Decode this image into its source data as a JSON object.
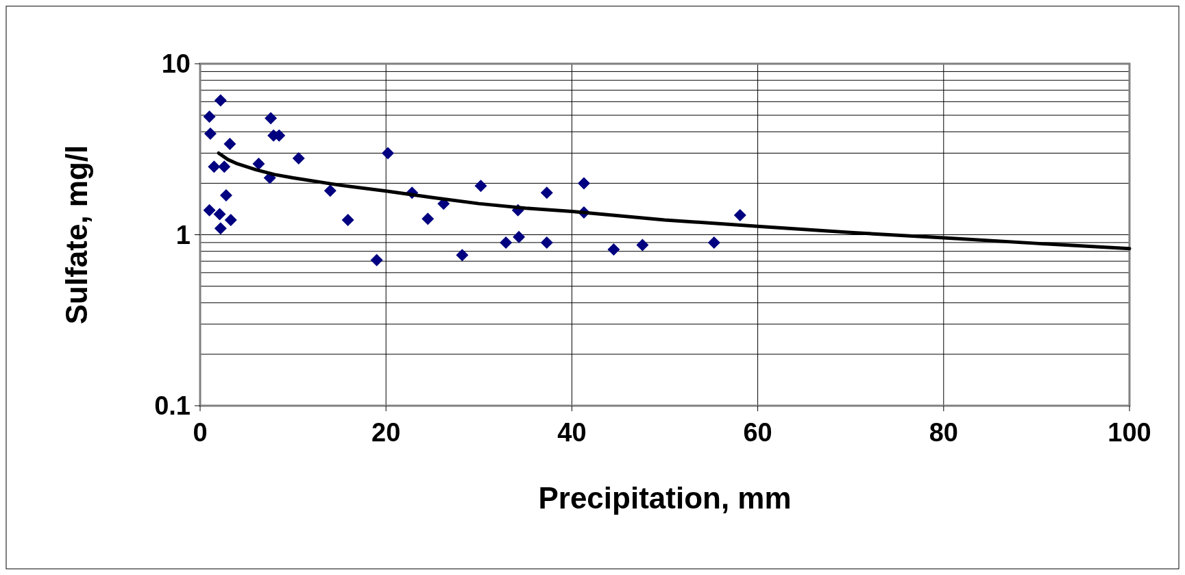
{
  "chart_data": {
    "type": "scatter",
    "xlabel": "Precipitation, mm",
    "ylabel": "Sulfate, mg/l",
    "log": "y",
    "grid": true,
    "marker": "diamond",
    "xlim": [
      0,
      100
    ],
    "xticks": [
      0,
      20,
      40,
      60,
      80,
      100
    ],
    "ylim": [
      0.1,
      10
    ],
    "yticks": [
      0.1,
      1,
      10
    ],
    "series": [
      {
        "color": "#000080",
        "x": [
          1.0,
          1.1,
          2.2,
          1.5,
          2.6,
          3.2,
          2.8,
          1.0,
          2.1,
          2.2,
          3.3,
          7.6,
          7.9,
          8.5,
          6.3,
          7.5,
          10.6,
          14.0,
          15.9,
          19.0,
          20.2,
          22.8,
          24.5,
          26.2,
          28.2,
          30.2,
          32.9,
          34.3,
          34.2,
          37.3,
          37.3,
          41.3,
          41.3,
          44.5,
          47.6,
          55.3,
          58.1
        ],
        "values": [
          4.9,
          3.9,
          6.1,
          2.5,
          2.5,
          3.4,
          1.7,
          1.39,
          1.32,
          1.09,
          1.22,
          4.8,
          3.8,
          3.8,
          2.6,
          2.15,
          2.8,
          1.81,
          1.22,
          0.71,
          3.0,
          1.76,
          1.24,
          1.52,
          0.76,
          1.93,
          0.9,
          0.97,
          1.39,
          0.9,
          1.76,
          2.0,
          1.35,
          0.82,
          0.87,
          0.9,
          1.3
        ]
      },
      {
        "type": "line",
        "color": "#000000",
        "marker": "none",
        "x": [
          2,
          3,
          4,
          6,
          8,
          10,
          15,
          20,
          25,
          30,
          35,
          40,
          50,
          60,
          70,
          80,
          90,
          100
        ],
        "values": [
          3.0,
          2.75,
          2.6,
          2.4,
          2.25,
          2.15,
          1.95,
          1.8,
          1.65,
          1.52,
          1.43,
          1.37,
          1.22,
          1.12,
          1.03,
          0.96,
          0.89,
          0.83
        ]
      }
    ]
  }
}
